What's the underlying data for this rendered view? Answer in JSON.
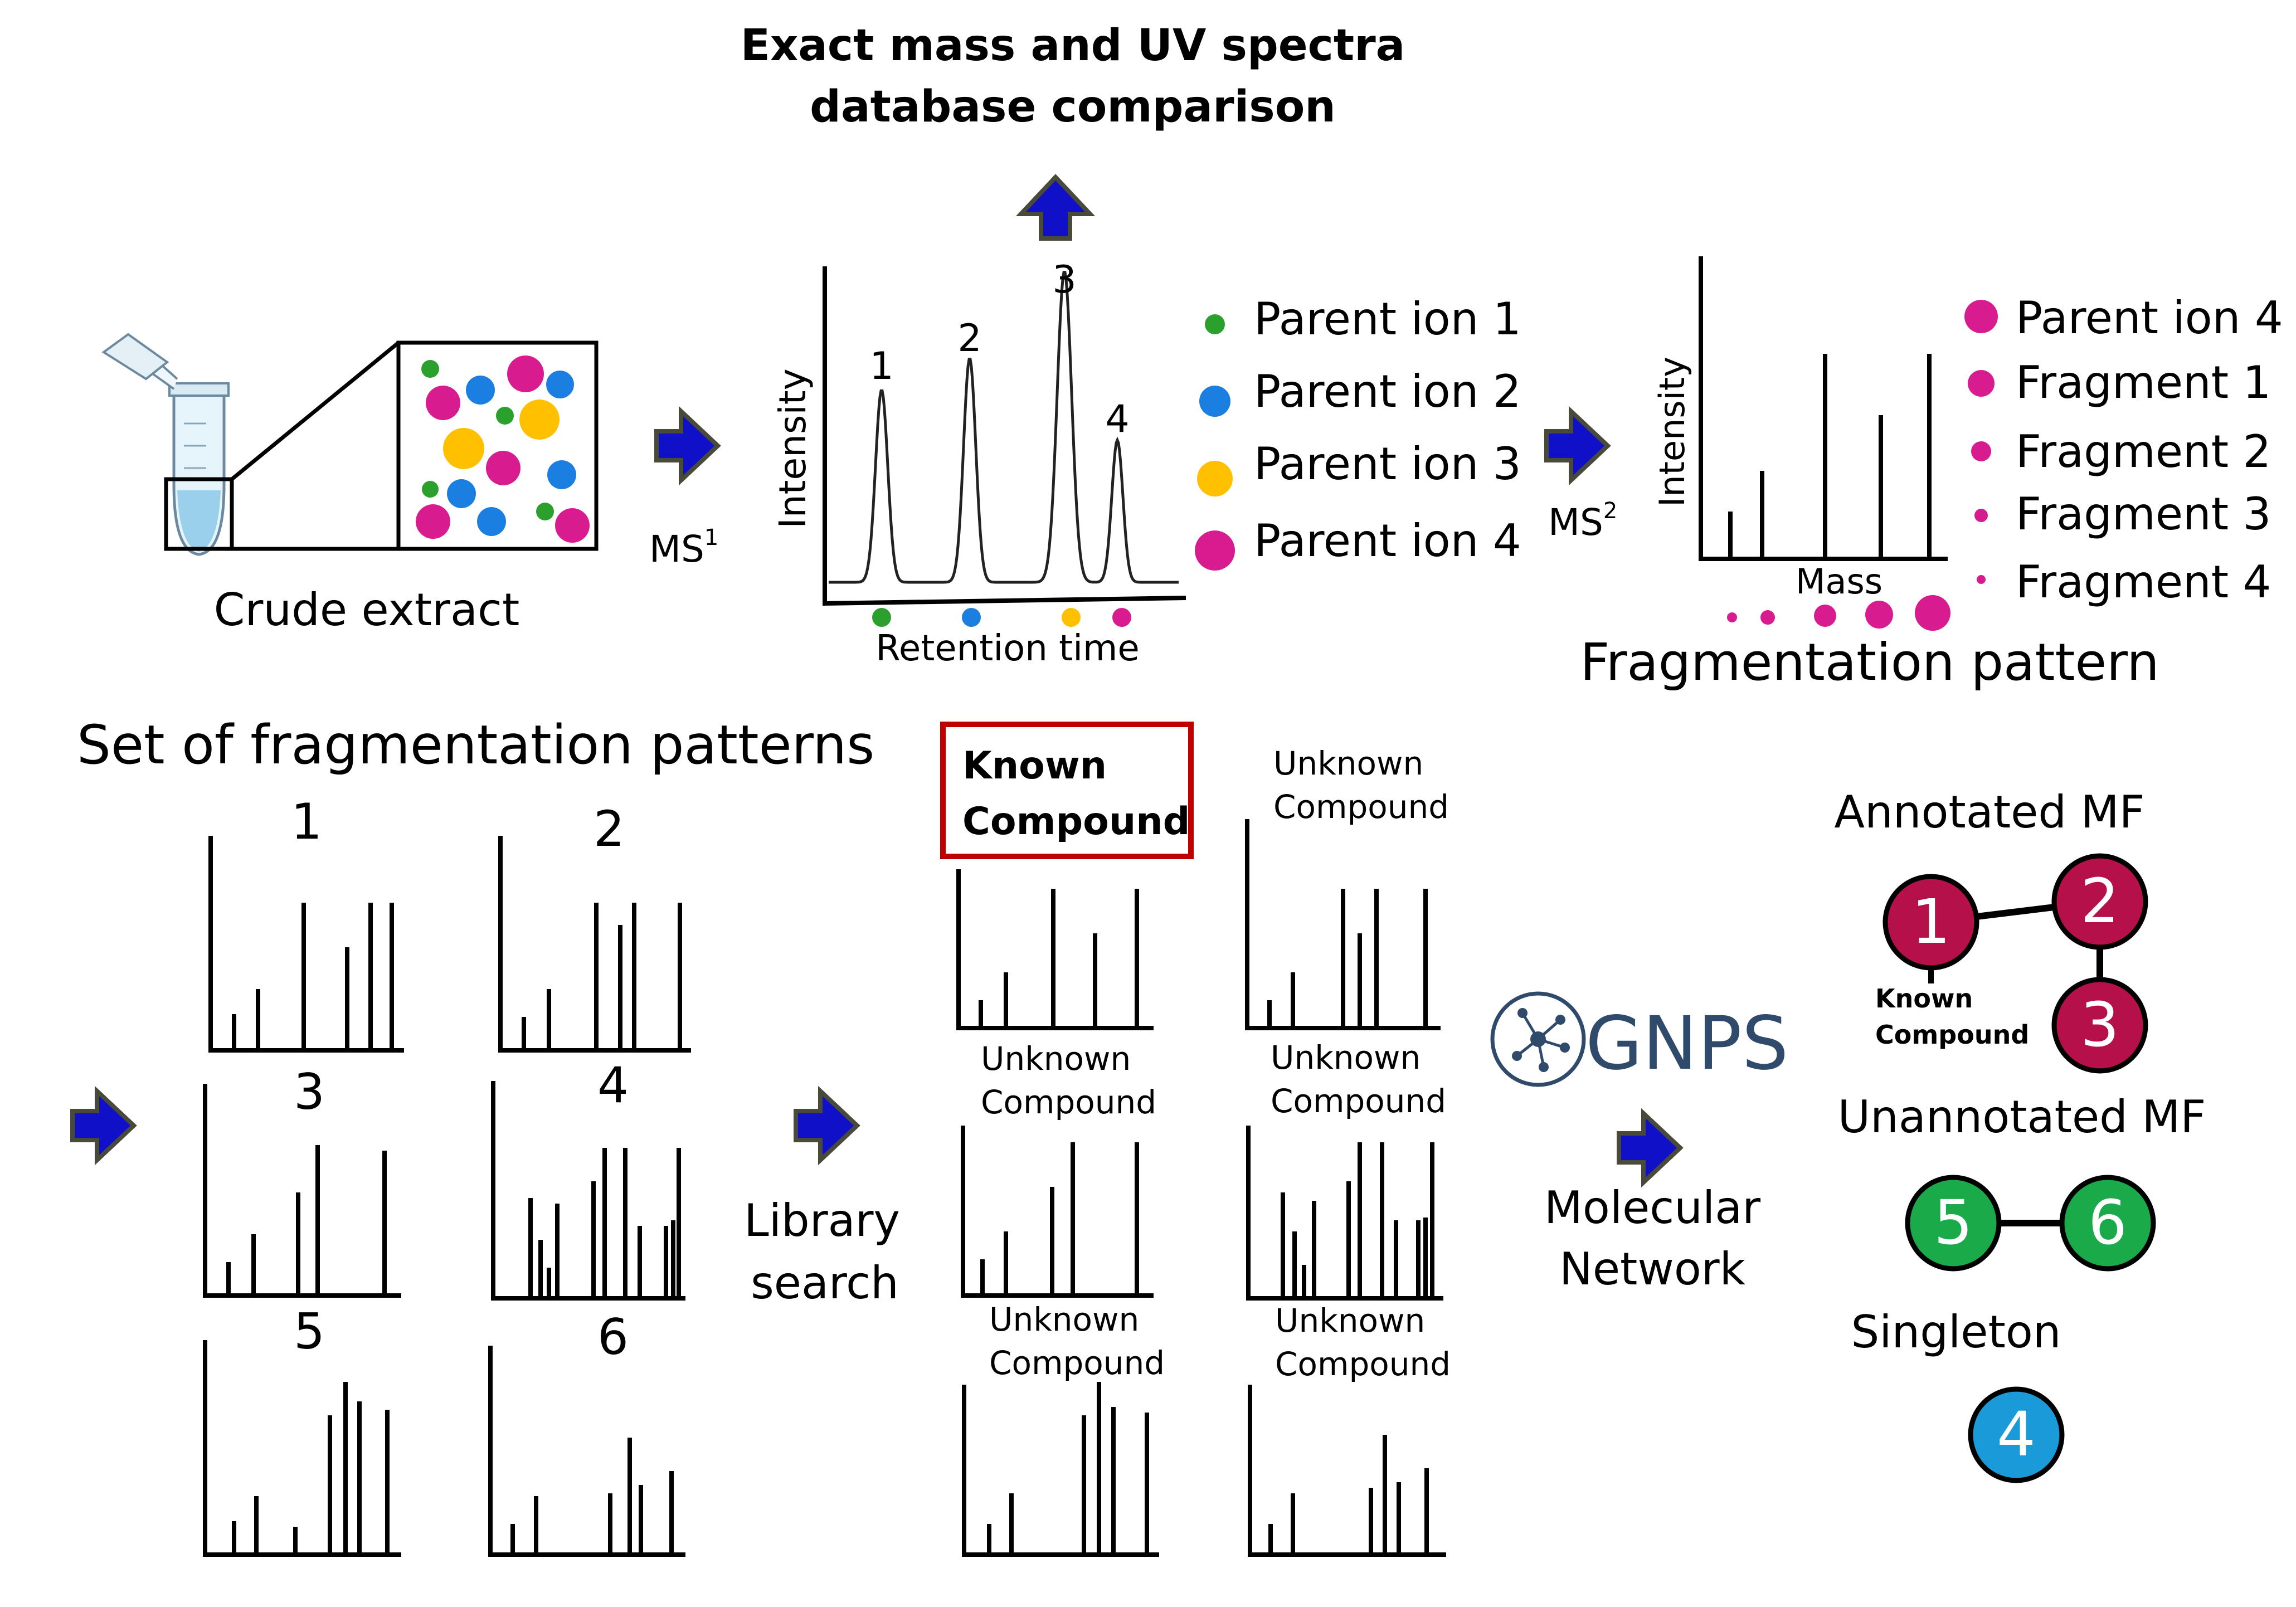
{
  "top": {
    "title_line1": "Exact mass and UV spectra",
    "title_line2": "database comparison"
  },
  "crude": {
    "label": "Crude extract"
  },
  "ms1": {
    "label": "MS",
    "sup": "1"
  },
  "chromatogram": {
    "ylabel": "Intensity",
    "xlabel": "Retention time",
    "peak_labels": [
      "1",
      "2",
      "3",
      "4"
    ]
  },
  "parent_legend": [
    "Parent ion 1",
    "Parent ion 2",
    "Parent ion 3",
    "Parent ion 4"
  ],
  "ms2": {
    "label": "MS",
    "sup": "2"
  },
  "ms2_spectrum": {
    "ylabel": "Intensity",
    "xlabel": "Mass",
    "title": "Fragmentation pattern"
  },
  "fragment_legend": [
    "Parent ion 4",
    "Fragment 1",
    "Fragment 2",
    "Fragment 3",
    "Fragment 4"
  ],
  "set": {
    "title": "Set of fragmentation patterns",
    "numbers": [
      "1",
      "2",
      "3",
      "4",
      "5",
      "6"
    ]
  },
  "library": {
    "line1": "Library",
    "line2": "search",
    "known_line1": "Known",
    "known_line2": "Compound",
    "unknown_line1": "Unknown",
    "unknown_line2": "Compound"
  },
  "gnps": {
    "logo_text": "GNPS",
    "line1": "Molecular",
    "line2": "Network"
  },
  "network": {
    "annotated_title": "Annotated MF",
    "unannotated_title": "Unannotated MF",
    "singleton_title": "Singleton",
    "known_line1": "Known",
    "known_line2": "Compound",
    "nodes": [
      "1",
      "2",
      "3",
      "5",
      "6",
      "4"
    ]
  },
  "colors": {
    "arrow": "#1010c8",
    "green": "#2ca02c",
    "blue": "#1a7fe0",
    "yellow": "#ffc000",
    "magenta": "#d81b8f",
    "crimson": "#b5104a",
    "node_green": "#1aaa4a",
    "node_blue": "#1a9ad8",
    "known_box": "#c00000",
    "gnps": "#2f4a6a"
  }
}
